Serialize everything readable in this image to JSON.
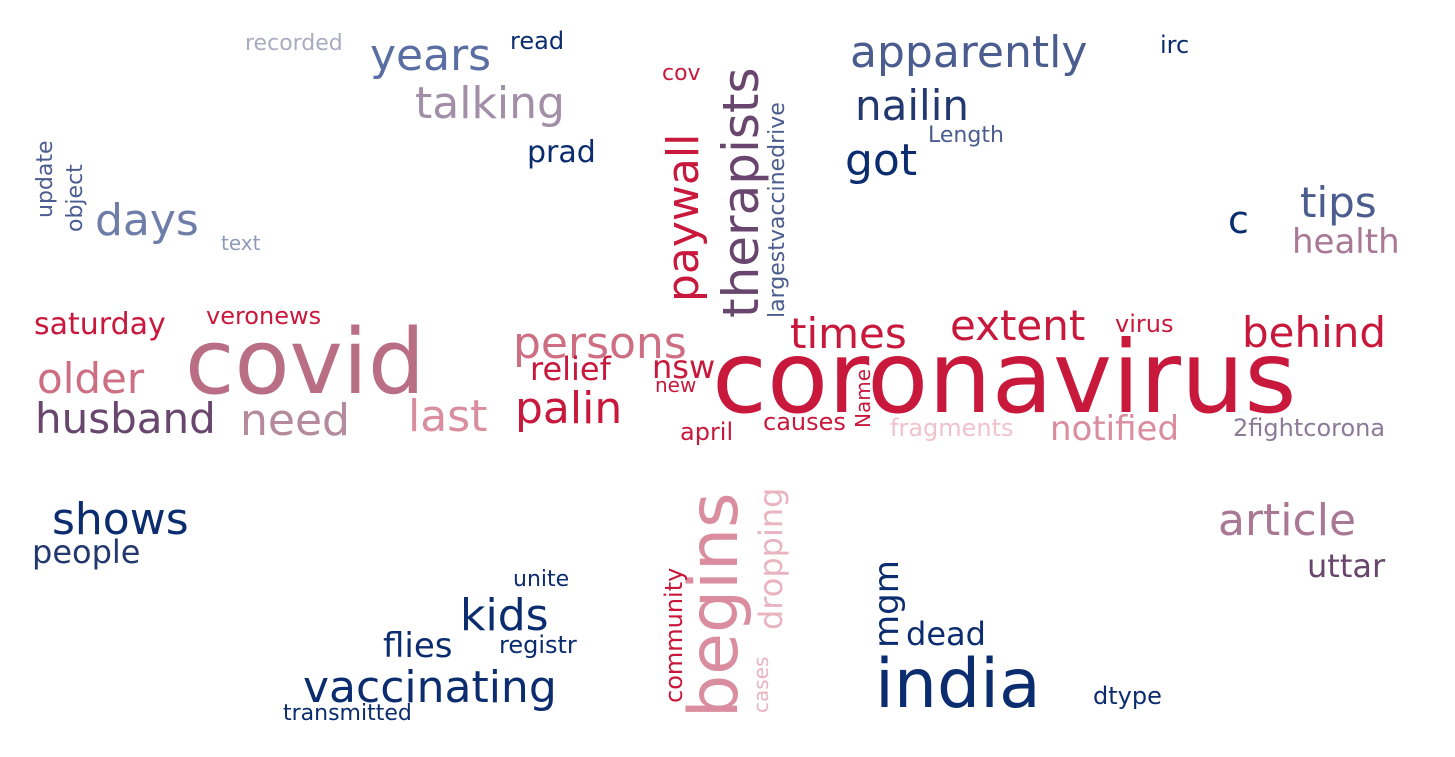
{
  "words": [
    {
      "text": "coronavirus",
      "color": "#c8193c"
    },
    {
      "text": "covid",
      "color": "#b96e86"
    },
    {
      "text": "india",
      "color": "#0b2c6e"
    },
    {
      "text": "begins",
      "color": "#d98d9f"
    },
    {
      "text": "therapists",
      "color": "#69466d"
    },
    {
      "text": "paywall",
      "color": "#c8193c"
    },
    {
      "text": "apparently",
      "color": "#4b5d8f"
    },
    {
      "text": "years",
      "color": "#5a6ea3"
    },
    {
      "text": "talking",
      "color": "#a38ea8"
    },
    {
      "text": "nailin",
      "color": "#23386e"
    },
    {
      "text": "got",
      "color": "#0b2c6e"
    },
    {
      "text": "days",
      "color": "#6f7ea8"
    },
    {
      "text": "tips",
      "color": "#4b5d8f"
    },
    {
      "text": "c",
      "color": "#0b2c6e"
    },
    {
      "text": "health",
      "color": "#a97895"
    },
    {
      "text": "persons",
      "color": "#ce6e82"
    },
    {
      "text": "times",
      "color": "#c8193c"
    },
    {
      "text": "extent",
      "color": "#c8193c"
    },
    {
      "text": "behind",
      "color": "#c8193c"
    },
    {
      "text": "older",
      "color": "#cc6f82"
    },
    {
      "text": "husband",
      "color": "#69466d"
    },
    {
      "text": "need",
      "color": "#b48a9c"
    },
    {
      "text": "last",
      "color": "#d98d9f"
    },
    {
      "text": "palin",
      "color": "#c8193c"
    },
    {
      "text": "relief",
      "color": "#c8193c"
    },
    {
      "text": "nsw",
      "color": "#c8193c"
    },
    {
      "text": "notified",
      "color": "#d98d9f"
    },
    {
      "text": "article",
      "color": "#a97895"
    },
    {
      "text": "shows",
      "color": "#0b2c6e"
    },
    {
      "text": "people",
      "color": "#23386e"
    },
    {
      "text": "kids",
      "color": "#0b2c6e"
    },
    {
      "text": "vaccinating",
      "color": "#0b2c6e"
    },
    {
      "text": "flies",
      "color": "#0b2c6e"
    },
    {
      "text": "uttar",
      "color": "#69466d"
    },
    {
      "text": "dead",
      "color": "#0b2c6e"
    },
    {
      "text": "mgm",
      "color": "#0b2c6e"
    },
    {
      "text": "dropping",
      "color": "#eab3c0"
    },
    {
      "text": "saturday",
      "color": "#c8193c"
    },
    {
      "text": "veronews",
      "color": "#c8193c"
    },
    {
      "text": "prad",
      "color": "#0b2c6e"
    },
    {
      "text": "recorded",
      "color": "#a8acc0"
    },
    {
      "text": "read",
      "color": "#0b2c6e"
    },
    {
      "text": "irc",
      "color": "#0b2c6e"
    },
    {
      "text": "Length",
      "color": "#4b5d8f"
    },
    {
      "text": "cov",
      "color": "#c8193c"
    },
    {
      "text": "largestvaccinedrive",
      "color": "#4b5d8f"
    },
    {
      "text": "update",
      "color": "#4b5d8f"
    },
    {
      "text": "object",
      "color": "#4b5d8f"
    },
    {
      "text": "text",
      "color": "#8f9ab8"
    },
    {
      "text": "virus",
      "color": "#c8193c"
    },
    {
      "text": "new",
      "color": "#c8193c"
    },
    {
      "text": "april",
      "color": "#c8193c"
    },
    {
      "text": "causes",
      "color": "#c8193c"
    },
    {
      "text": "Name",
      "color": "#c8193c"
    },
    {
      "text": "fragments",
      "color": "#f0c3cc"
    },
    {
      "text": "2fightcorona",
      "color": "#8c7a98"
    },
    {
      "text": "unite",
      "color": "#0b2c6e"
    },
    {
      "text": "registr",
      "color": "#0b2c6e"
    },
    {
      "text": "community",
      "color": "#c8193c"
    },
    {
      "text": "cases",
      "color": "#eab3c0"
    },
    {
      "text": "transmitted",
      "color": "#0b2c6e"
    },
    {
      "text": "dtype",
      "color": "#0b2c6e"
    }
  ]
}
